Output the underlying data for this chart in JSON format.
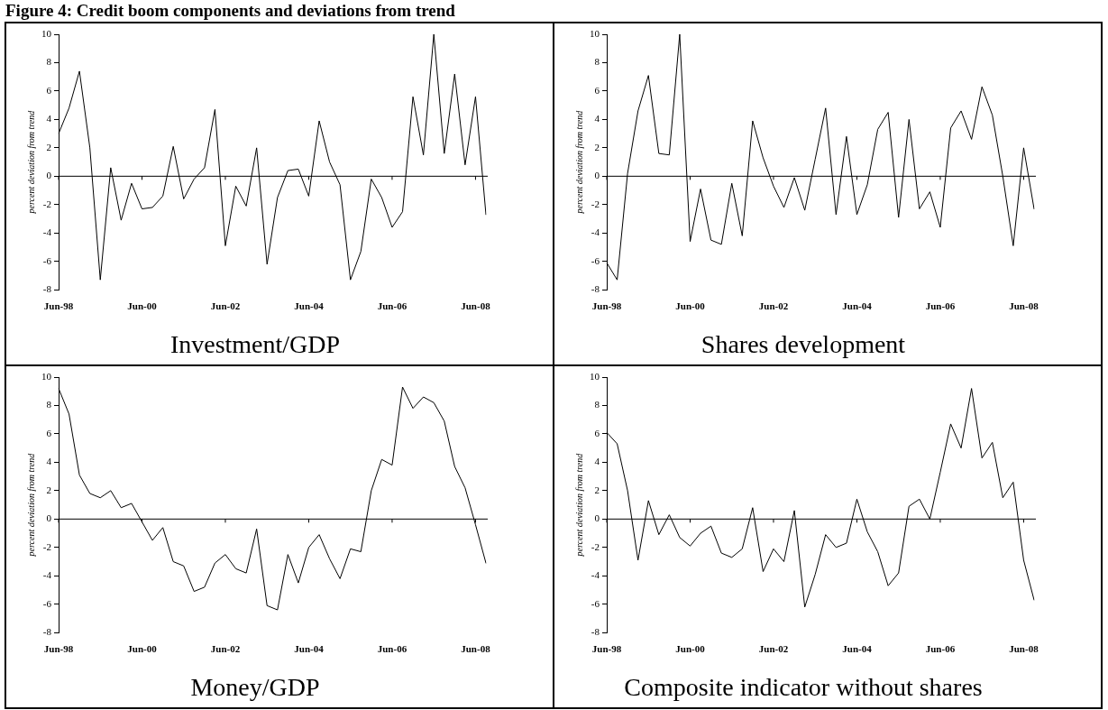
{
  "chart_data": [
    {
      "type": "line",
      "title": "Investment/GDP",
      "ylabel": "percent deviation from trend",
      "annotations": [
        "Figure 4: Credit boom components and deviations from trend"
      ],
      "categories": [
        "Jun-98",
        null,
        null,
        null,
        null,
        null,
        null,
        null,
        "Jun-00",
        null,
        null,
        null,
        null,
        null,
        null,
        null,
        "Jun-02",
        null,
        null,
        null,
        null,
        null,
        null,
        null,
        "Jun-04",
        null,
        null,
        null,
        null,
        null,
        null,
        null,
        "Jun-06",
        null,
        null,
        null,
        null,
        null,
        null,
        null,
        "Jun-08",
        null
      ],
      "series": [
        {
          "color": "#000000",
          "values": [
            3.0,
            4.8,
            7.4,
            2.0,
            -7.3,
            0.6,
            -3.1,
            -0.5,
            -2.3,
            -2.2,
            -1.4,
            2.1,
            -1.6,
            -0.2,
            0.6,
            4.7,
            -4.9,
            -0.7,
            -2.1,
            2.0,
            -6.2,
            -1.5,
            0.4,
            0.5,
            -1.4,
            3.9,
            1.0,
            -0.6,
            -7.3,
            -5.3,
            -0.2,
            -1.5,
            -3.6,
            -2.5,
            5.6,
            1.5,
            10.0,
            1.6,
            7.2,
            0.8,
            5.6,
            -2.7
          ]
        }
      ],
      "ylim": [
        -8,
        10
      ],
      "yticks": [
        -8,
        -6,
        -4,
        -2,
        0,
        2,
        4,
        6,
        8,
        10
      ],
      "ref_lines": [
        {
          "axis": "y",
          "value": 0,
          "color": "#000000"
        }
      ],
      "grid": false,
      "legend": false
    },
    {
      "type": "line",
      "title": "Shares development",
      "ylabel": "percent deviation from trend",
      "categories": [
        "Jun-98",
        null,
        null,
        null,
        null,
        null,
        null,
        null,
        "Jun-00",
        null,
        null,
        null,
        null,
        null,
        null,
        null,
        "Jun-02",
        null,
        null,
        null,
        null,
        null,
        null,
        null,
        "Jun-04",
        null,
        null,
        null,
        null,
        null,
        null,
        null,
        "Jun-06",
        null,
        null,
        null,
        null,
        null,
        null,
        null,
        "Jun-08",
        null
      ],
      "series": [
        {
          "color": "#000000",
          "values": [
            -6.1,
            -7.3,
            0.2,
            4.6,
            7.1,
            1.6,
            1.5,
            10.0,
            -4.6,
            -0.9,
            -4.5,
            -4.8,
            -0.5,
            -4.2,
            3.9,
            1.3,
            -0.7,
            -2.2,
            -0.1,
            -2.4,
            1.2,
            4.8,
            -2.7,
            2.8,
            -2.7,
            -0.6,
            3.3,
            4.5,
            -2.9,
            4.0,
            -2.3,
            -1.1,
            -3.6,
            3.4,
            4.6,
            2.6,
            6.3,
            4.3,
            0.0,
            -4.9,
            2.0,
            -2.3
          ]
        }
      ],
      "ylim": [
        -8,
        10
      ],
      "yticks": [
        -8,
        -6,
        -4,
        -2,
        0,
        2,
        4,
        6,
        8,
        10
      ],
      "ref_lines": [
        {
          "axis": "y",
          "value": 0,
          "color": "#000000"
        }
      ],
      "grid": false,
      "legend": false
    },
    {
      "type": "line",
      "title": "Money/GDP",
      "ylabel": "percent deviation from trend",
      "categories": [
        "Jun-98",
        null,
        null,
        null,
        null,
        null,
        null,
        null,
        "Jun-00",
        null,
        null,
        null,
        null,
        null,
        null,
        null,
        "Jun-02",
        null,
        null,
        null,
        null,
        null,
        null,
        null,
        "Jun-04",
        null,
        null,
        null,
        null,
        null,
        null,
        null,
        "Jun-06",
        null,
        null,
        null,
        null,
        null,
        null,
        null,
        "Jun-08",
        null
      ],
      "series": [
        {
          "color": "#000000",
          "values": [
            9.2,
            7.4,
            3.1,
            1.8,
            1.5,
            2.0,
            0.8,
            1.1,
            -0.2,
            -1.5,
            -0.6,
            -3.0,
            -3.3,
            -5.1,
            -4.8,
            -3.1,
            -2.5,
            -3.5,
            -3.8,
            -0.7,
            -6.1,
            -6.4,
            -2.5,
            -4.5,
            -2.0,
            -1.1,
            -2.8,
            -4.2,
            -2.1,
            -2.3,
            2.0,
            4.2,
            3.8,
            9.3,
            7.8,
            8.6,
            8.2,
            6.9,
            3.7,
            2.2,
            -0.4,
            -3.1
          ]
        }
      ],
      "ylim": [
        -8,
        10
      ],
      "yticks": [
        -8,
        -6,
        -4,
        -2,
        0,
        2,
        4,
        6,
        8,
        10
      ],
      "ref_lines": [
        {
          "axis": "y",
          "value": 0,
          "color": "#000000"
        }
      ],
      "grid": false,
      "legend": false
    },
    {
      "type": "line",
      "title": "Composite indicator without shares",
      "ylabel": "percent deviation from trend",
      "categories": [
        "Jun-98",
        null,
        null,
        null,
        null,
        null,
        null,
        null,
        "Jun-00",
        null,
        null,
        null,
        null,
        null,
        null,
        null,
        "Jun-02",
        null,
        null,
        null,
        null,
        null,
        null,
        null,
        "Jun-04",
        null,
        null,
        null,
        null,
        null,
        null,
        null,
        "Jun-06",
        null,
        null,
        null,
        null,
        null,
        null,
        null,
        "Jun-08",
        null
      ],
      "series": [
        {
          "color": "#000000",
          "values": [
            6.1,
            5.3,
            2.0,
            -2.9,
            1.3,
            -1.1,
            0.3,
            -1.3,
            -1.9,
            -1.0,
            -0.5,
            -2.4,
            -2.7,
            -2.1,
            0.8,
            -3.7,
            -2.1,
            -3.0,
            0.6,
            -6.2,
            -3.9,
            -1.1,
            -2.0,
            -1.7,
            1.4,
            -0.9,
            -2.3,
            -4.7,
            -3.8,
            0.9,
            1.4,
            0.0,
            3.3,
            6.7,
            5.0,
            9.2,
            4.3,
            5.4,
            1.5,
            2.6,
            -2.9,
            -5.7
          ]
        }
      ],
      "ylim": [
        -8,
        10
      ],
      "yticks": [
        -8,
        -6,
        -4,
        -2,
        0,
        2,
        4,
        6,
        8,
        10
      ],
      "ref_lines": [
        {
          "axis": "y",
          "value": 0,
          "color": "#000000"
        }
      ],
      "grid": false,
      "legend": false
    }
  ]
}
